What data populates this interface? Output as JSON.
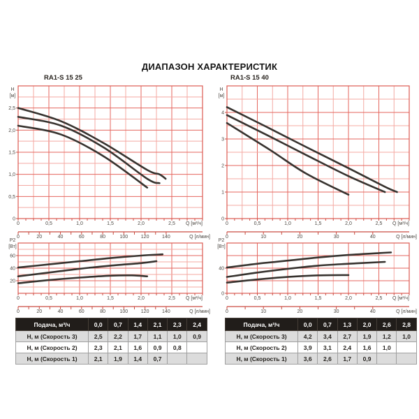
{
  "title": "ДИАПАЗОН ХАРАКТЕРИСТИК",
  "colors": {
    "grid_minor": "#f4a9a2",
    "grid_major": "#e4665e",
    "plot_border": "#dd5a52",
    "ruler_red": "#c94b40",
    "curve": "#37332f",
    "axis_text": "#4a4640",
    "chart_title_text": "#29241f",
    "page_title_text": "#141414",
    "table_header_bg": "#211d1a",
    "table_header_text": "#ffffff",
    "table_row_alt_bg": "#dcdcdc",
    "table_text": "#24211d"
  },
  "chart_data": [
    {
      "pump": "RA1-S 15 25",
      "kind": "head",
      "type": "line",
      "title": "RA1-S 15 25",
      "ylabel_lines": [
        "H",
        "[м]"
      ],
      "xunit": "Q [м³/ч]",
      "xlim": [
        0,
        3
      ],
      "x_grid": 0.25,
      "x_major": 0.5,
      "x_minor_tick": 0.125,
      "x_ticks": [
        {
          "v": 0,
          "t": "0"
        },
        {
          "v": 0.5,
          "t": "0,5"
        },
        {
          "v": 1,
          "t": "1,0"
        },
        {
          "v": 1.5,
          "t": "1,5"
        },
        {
          "v": 2,
          "t": "2,0"
        },
        {
          "v": 2.5,
          "t": "2,5"
        }
      ],
      "ylim": [
        0,
        3
      ],
      "y_grid": 0.25,
      "y_major": 0.5,
      "y_ticks": [
        {
          "v": 0,
          "t": "0"
        },
        {
          "v": 0.5,
          "t": "0,5"
        },
        {
          "v": 1,
          "t": "1,0"
        },
        {
          "v": 1.5,
          "t": "1,5"
        },
        {
          "v": 2,
          "t": "2,0"
        },
        {
          "v": 2.5,
          "t": "2,5"
        }
      ],
      "flow_ruler": {
        "unit": "Q [л/мин]",
        "m3h_per_unit": 0.0172,
        "tick_step": 10,
        "ticks": [
          {
            "v": 0,
            "t": "0"
          },
          {
            "v": 20,
            "t": "20"
          },
          {
            "v": 40,
            "t": "40"
          },
          {
            "v": 60,
            "t": "60"
          },
          {
            "v": 80,
            "t": "80"
          },
          {
            "v": 100,
            "t": "100"
          },
          {
            "v": 120,
            "t": "120"
          },
          {
            "v": 140,
            "t": "140"
          }
        ]
      },
      "series": [
        {
          "name": "Скорость 3",
          "points": [
            [
              0,
              2.5
            ],
            [
              0.7,
              2.2
            ],
            [
              1.4,
              1.7
            ],
            [
              2.1,
              1.1
            ],
            [
              2.3,
              1.0
            ],
            [
              2.4,
              0.9
            ]
          ]
        },
        {
          "name": "Скорость 2",
          "points": [
            [
              0,
              2.3
            ],
            [
              0.7,
              2.1
            ],
            [
              1.4,
              1.6
            ],
            [
              2.1,
              0.9
            ],
            [
              2.3,
              0.8
            ]
          ]
        },
        {
          "name": "Скорость 1",
          "points": [
            [
              0,
              2.1
            ],
            [
              0.7,
              1.9
            ],
            [
              1.4,
              1.4
            ],
            [
              2.1,
              0.7
            ]
          ]
        }
      ]
    },
    {
      "pump": "RA1-S 15 25",
      "kind": "power",
      "type": "line",
      "title": "",
      "ylabel_lines": [
        "P2",
        "[Вт]"
      ],
      "xunit": "Q [м³/ч]",
      "xlim": [
        0,
        3
      ],
      "x_grid": 0.25,
      "x_major": 0.5,
      "x_minor_tick": 0.125,
      "x_ticks": [
        {
          "v": 0,
          "t": "0"
        },
        {
          "v": 0.5,
          "t": "0,5"
        },
        {
          "v": 1,
          "t": "1,0"
        },
        {
          "v": 1.5,
          "t": "1,5"
        },
        {
          "v": 2,
          "t": "2,0"
        },
        {
          "v": 2.5,
          "t": "2,5"
        }
      ],
      "ylim": [
        0,
        80
      ],
      "y_grid": 10,
      "y_major": 20,
      "y_ticks": [
        {
          "v": 20,
          "t": "20"
        },
        {
          "v": 40,
          "t": "40"
        },
        {
          "v": 60,
          "t": "60"
        }
      ],
      "flow_ruler": {
        "unit": "Q [л/мин]",
        "m3h_per_unit": 0.0172,
        "tick_step": 10,
        "ticks": [
          {
            "v": 0,
            "t": "0"
          },
          {
            "v": 20,
            "t": "20"
          },
          {
            "v": 40,
            "t": "40"
          },
          {
            "v": 60,
            "t": "60"
          },
          {
            "v": 80,
            "t": "80"
          },
          {
            "v": 100,
            "t": "100"
          },
          {
            "v": 120,
            "t": "120"
          },
          {
            "v": 140,
            "t": "140"
          }
        ]
      },
      "series": [
        {
          "name": "Скорость 3",
          "points": [
            [
              0,
              41
            ],
            [
              0.5,
              46
            ],
            [
              1.0,
              51
            ],
            [
              1.5,
              56
            ],
            [
              2.0,
              60
            ],
            [
              2.35,
              62
            ]
          ]
        },
        {
          "name": "Скорость 2",
          "points": [
            [
              0,
              27
            ],
            [
              0.5,
              33
            ],
            [
              1.0,
              39
            ],
            [
              1.5,
              44
            ],
            [
              2.0,
              48
            ],
            [
              2.25,
              51
            ]
          ]
        },
        {
          "name": "Скорость 1",
          "points": [
            [
              0,
              16
            ],
            [
              0.5,
              21
            ],
            [
              1.0,
              25
            ],
            [
              1.5,
              28
            ],
            [
              1.85,
              28.5
            ],
            [
              2.1,
              27
            ]
          ]
        }
      ]
    },
    {
      "pump": "RA1-S 15 40",
      "kind": "head",
      "type": "line",
      "title": "RA1-S 15 40",
      "ylabel_lines": [
        "H",
        "[м]"
      ],
      "xunit": "Q [м³/ч]",
      "xlim": [
        0,
        3
      ],
      "x_grid": 0.25,
      "x_major": 0.5,
      "x_minor_tick": 0.125,
      "x_ticks": [
        {
          "v": 0,
          "t": "0"
        },
        {
          "v": 0.5,
          "t": "0,5"
        },
        {
          "v": 1,
          "t": "1,0"
        },
        {
          "v": 1.5,
          "t": "1,5"
        },
        {
          "v": 2,
          "t": "2,0"
        },
        {
          "v": 2.5,
          "t": "2,5"
        }
      ],
      "ylim": [
        0,
        5
      ],
      "y_grid": 0.5,
      "y_major": 1,
      "y_ticks": [
        {
          "v": 0,
          "t": "0"
        },
        {
          "v": 1,
          "t": "1"
        },
        {
          "v": 2,
          "t": "2"
        },
        {
          "v": 3,
          "t": "3"
        },
        {
          "v": 4,
          "t": "4"
        }
      ],
      "flow_ruler": {
        "unit": "Q [л/мин]",
        "m3h_per_unit": 0.06,
        "tick_step": 5,
        "ticks": [
          {
            "v": 0,
            "t": "0"
          },
          {
            "v": 10,
            "t": "10"
          },
          {
            "v": 20,
            "t": "20"
          },
          {
            "v": 30,
            "t": "30"
          },
          {
            "v": 40,
            "t": "40"
          }
        ]
      },
      "series": [
        {
          "name": "Скорость 3",
          "points": [
            [
              0,
              4.2
            ],
            [
              0.7,
              3.4
            ],
            [
              1.3,
              2.7
            ],
            [
              2.0,
              1.9
            ],
            [
              2.6,
              1.2
            ],
            [
              2.8,
              1.0
            ]
          ]
        },
        {
          "name": "Скорость 2",
          "points": [
            [
              0,
              3.9
            ],
            [
              0.7,
              3.1
            ],
            [
              1.3,
              2.4
            ],
            [
              2.0,
              1.6
            ],
            [
              2.6,
              1.0
            ]
          ]
        },
        {
          "name": "Скорость 1",
          "points": [
            [
              0,
              3.6
            ],
            [
              0.7,
              2.6
            ],
            [
              1.3,
              1.7
            ],
            [
              2.0,
              0.9
            ]
          ]
        }
      ]
    },
    {
      "pump": "RA1-S 15 40",
      "kind": "power",
      "type": "line",
      "title": "",
      "ylabel_lines": [
        "P2",
        "[Вт]"
      ],
      "xunit": "Q [м³/ч]",
      "xlim": [
        0,
        3
      ],
      "x_grid": 0.25,
      "x_major": 0.5,
      "x_minor_tick": 0.125,
      "x_ticks": [
        {
          "v": 0,
          "t": "0"
        },
        {
          "v": 0.5,
          "t": "0,5"
        },
        {
          "v": 1,
          "t": "1,0"
        },
        {
          "v": 1.5,
          "t": "1,5"
        },
        {
          "v": 2,
          "t": "2,0"
        },
        {
          "v": 2.5,
          "t": "2,5"
        }
      ],
      "ylim": [
        0,
        80
      ],
      "y_grid": 20,
      "y_major": 20,
      "y_ticks": [
        {
          "v": 0,
          "t": "0"
        },
        {
          "v": 40,
          "t": "40"
        }
      ],
      "flow_ruler": {
        "unit": "Q [л/мин]",
        "m3h_per_unit": 0.06,
        "tick_step": 5,
        "ticks": [
          {
            "v": 0,
            "t": "0"
          },
          {
            "v": 10,
            "t": "10"
          },
          {
            "v": 20,
            "t": "20"
          },
          {
            "v": 30,
            "t": "30"
          },
          {
            "v": 40,
            "t": "40"
          }
        ]
      },
      "series": [
        {
          "name": "Скорость 3",
          "points": [
            [
              0,
              41
            ],
            [
              0.5,
              47
            ],
            [
              1.0,
              52
            ],
            [
              1.5,
              57
            ],
            [
              2.0,
              61
            ],
            [
              2.5,
              64
            ],
            [
              2.7,
              65
            ]
          ]
        },
        {
          "name": "Скорость 2",
          "points": [
            [
              0,
              26
            ],
            [
              0.5,
              33
            ],
            [
              1.0,
              39
            ],
            [
              1.5,
              44
            ],
            [
              2.0,
              47
            ],
            [
              2.6,
              50
            ]
          ]
        },
        {
          "name": "Скорость 1",
          "points": [
            [
              0,
              17
            ],
            [
              0.5,
              22
            ],
            [
              1.0,
              26
            ],
            [
              1.5,
              28.5
            ],
            [
              2.0,
              29
            ]
          ]
        }
      ]
    }
  ],
  "tables": [
    {
      "pump": "RA1-S 15 25",
      "header": [
        "Подача, м³/ч",
        "0,0",
        "0,7",
        "1,4",
        "2,1",
        "2,3",
        "2,4"
      ],
      "rows": [
        [
          "Н, м (Скорость 3)",
          "2,5",
          "2,2",
          "1,7",
          "1,1",
          "1,0",
          "0,9"
        ],
        [
          "Н, м (Скорость 2)",
          "2,3",
          "2,1",
          "1,6",
          "0,9",
          "0,8",
          ""
        ],
        [
          "Н, м (Скорость 1)",
          "2,1",
          "1,9",
          "1,4",
          "0,7",
          "",
          ""
        ]
      ]
    },
    {
      "pump": "RA1-S 15 40",
      "header": [
        "Подача, м³/ч",
        "0,0",
        "0,7",
        "1,3",
        "2,0",
        "2,6",
        "2,8"
      ],
      "rows": [
        [
          "Н, м (Скорость 3)",
          "4,2",
          "3,4",
          "2,7",
          "1,9",
          "1,2",
          "1,0"
        ],
        [
          "Н, м (Скорость 2)",
          "3,9",
          "3,1",
          "2,4",
          "1,6",
          "1,0",
          ""
        ],
        [
          "Н, м (Скорость 1)",
          "3,6",
          "2,6",
          "1,7",
          "0,9",
          "",
          ""
        ]
      ]
    }
  ]
}
